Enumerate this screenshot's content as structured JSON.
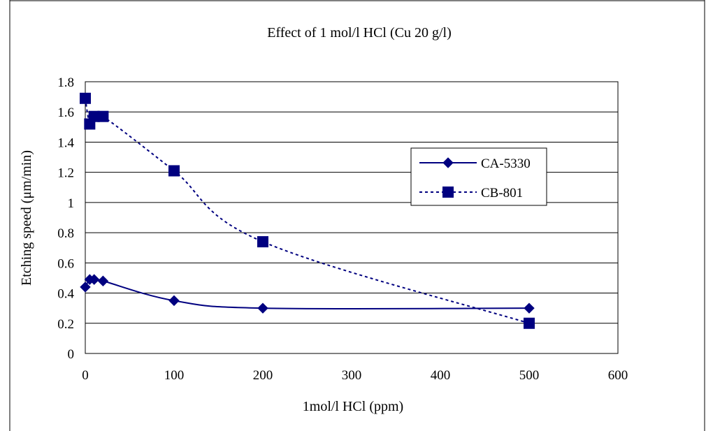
{
  "chart_data": {
    "type": "line",
    "title": "Effect of 1 mol/l HCl (Cu 20 g/l)",
    "xlabel": "1mol/l HCl (ppm)",
    "ylabel": "Etching speed (μm/min)",
    "xlim": [
      0,
      600
    ],
    "ylim": [
      0,
      1.8
    ],
    "x_ticks": [
      0,
      100,
      200,
      300,
      400,
      500,
      600
    ],
    "y_ticks": [
      0,
      0.2,
      0.4,
      0.6,
      0.8,
      1,
      1.2,
      1.4,
      1.6,
      1.8
    ],
    "x_tick_labels": [
      "0",
      "100",
      "200",
      "300",
      "400",
      "500",
      "600"
    ],
    "y_tick_labels": [
      "0",
      "0.2",
      "0.4",
      "0.6",
      "0.8",
      "1",
      "1.2",
      "1.4",
      "1.6",
      "1.8"
    ],
    "grid": "horizontal",
    "legend_position": "right",
    "series": [
      {
        "name": "CA-5330",
        "marker": "diamond",
        "line_style": "solid",
        "color": "#000080",
        "x": [
          0,
          5,
          10,
          20,
          100,
          200,
          500
        ],
        "y": [
          0.44,
          0.49,
          0.49,
          0.48,
          0.35,
          0.3,
          0.3
        ]
      },
      {
        "name": "CB-801",
        "marker": "square",
        "line_style": "dashed",
        "color": "#000080",
        "x": [
          0,
          5,
          10,
          20,
          100,
          200,
          500
        ],
        "y": [
          1.69,
          1.52,
          1.57,
          1.57,
          1.21,
          0.74,
          0.2
        ]
      }
    ]
  }
}
